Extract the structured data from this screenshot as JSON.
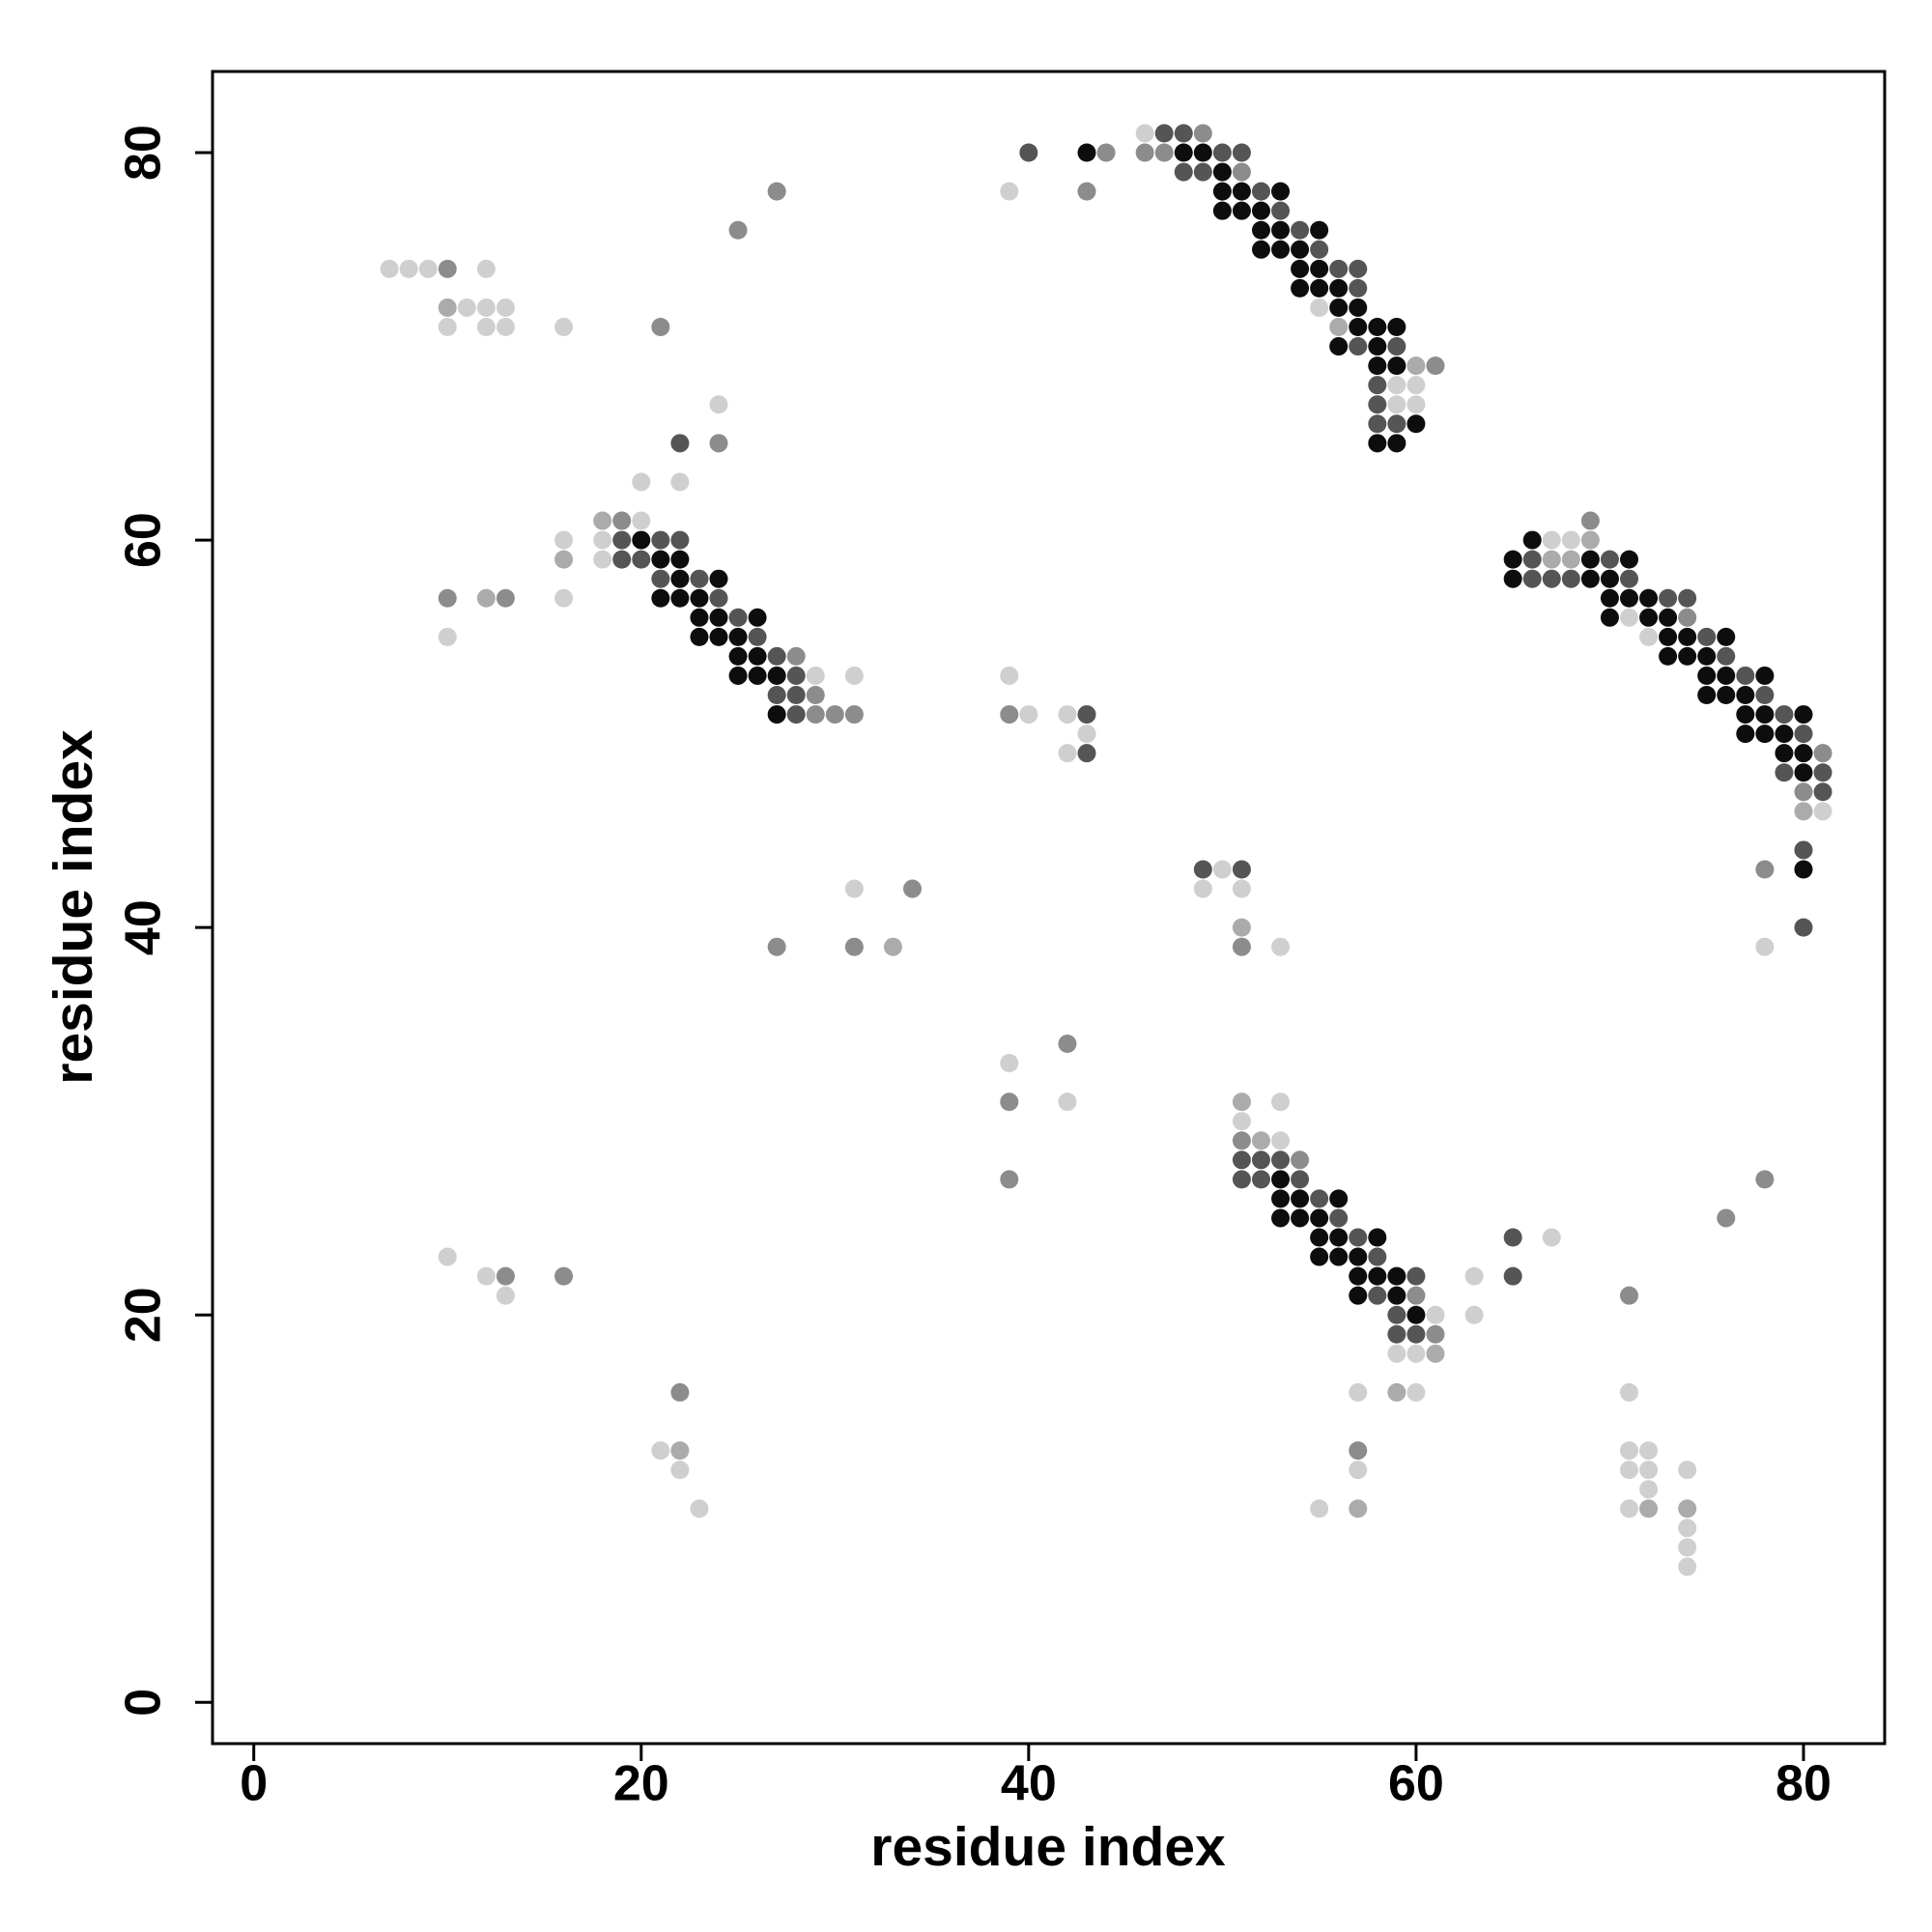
{
  "chart_data": {
    "type": "scatter",
    "xlabel": "residue index",
    "ylabel": "residue index",
    "xlim": [
      -2.13,
      84.19
    ],
    "ylim": [
      -2.13,
      84.19
    ],
    "xticks": [
      0,
      20,
      40,
      60,
      80
    ],
    "yticks": [
      0,
      20,
      40,
      60,
      80
    ],
    "series": [
      {
        "color": "#0d0d0d",
        "x": [
          43,
          48,
          49,
          50,
          50,
          51,
          53,
          50,
          51,
          52,
          52,
          53,
          55,
          52,
          53,
          54,
          54,
          55,
          54,
          55,
          56,
          56,
          57,
          57,
          58,
          59,
          56,
          58,
          58,
          59,
          60,
          58,
          59,
          20,
          21,
          22,
          22,
          24,
          21,
          22,
          23,
          23,
          24,
          26,
          23,
          24,
          25,
          25,
          26,
          25,
          26,
          27,
          27,
          66,
          65,
          69,
          71,
          65,
          69,
          70,
          70,
          71,
          72,
          70,
          72,
          73,
          73,
          74,
          76,
          73,
          74,
          75,
          75,
          76,
          78,
          75,
          76,
          77,
          77,
          78,
          80,
          77,
          78,
          79,
          79,
          80,
          80,
          80,
          53,
          53,
          54,
          56,
          53,
          54,
          55,
          55,
          56,
          58,
          55,
          56,
          57,
          57,
          58,
          59,
          57,
          59,
          60
        ],
        "y": [
          80,
          80,
          80,
          79,
          78,
          78,
          78,
          77,
          77,
          77,
          76,
          76,
          76,
          75,
          75,
          75,
          74,
          74,
          73,
          73,
          73,
          72,
          72,
          71,
          71,
          71,
          70,
          70,
          69,
          69,
          66,
          65,
          65,
          60,
          59,
          59,
          58,
          58,
          57,
          57,
          57,
          56,
          56,
          56,
          55,
          55,
          55,
          54,
          54,
          53,
          53,
          53,
          51,
          60,
          59,
          59,
          59,
          58,
          58,
          58,
          57,
          57,
          57,
          56,
          56,
          56,
          55,
          55,
          55,
          54,
          54,
          54,
          53,
          53,
          53,
          52,
          52,
          52,
          51,
          51,
          51,
          50,
          50,
          50,
          49,
          49,
          48,
          43,
          27,
          26,
          26,
          26,
          25,
          25,
          25,
          24,
          24,
          24,
          23,
          23,
          23,
          22,
          22,
          22,
          21,
          21,
          20
        ]
      },
      {
        "color": "#555555",
        "x": [
          47,
          48,
          40,
          50,
          51,
          48,
          49,
          52,
          53,
          54,
          55,
          56,
          57,
          57,
          57,
          59,
          58,
          58,
          58,
          59,
          22,
          19,
          21,
          22,
          19,
          20,
          21,
          23,
          24,
          25,
          26,
          27,
          28,
          27,
          28,
          28,
          43,
          43,
          66,
          70,
          66,
          67,
          68,
          71,
          73,
          74,
          75,
          76,
          77,
          78,
          79,
          80,
          79,
          81,
          81,
          80,
          49,
          51,
          80,
          51,
          52,
          53,
          51,
          52,
          54,
          55,
          56,
          57,
          58,
          60,
          65,
          58,
          59,
          59,
          60,
          65
        ],
        "y": [
          81,
          81,
          80,
          80,
          80,
          79,
          79,
          78,
          77,
          76,
          75,
          74,
          74,
          73,
          70,
          70,
          68,
          67,
          66,
          66,
          65,
          60,
          60,
          60,
          59,
          59,
          58,
          58,
          57,
          56,
          55,
          54,
          53,
          52,
          52,
          51,
          51,
          49,
          59,
          59,
          58,
          58,
          58,
          58,
          57,
          57,
          55,
          54,
          53,
          52,
          51,
          50,
          48,
          48,
          47,
          44,
          43,
          43,
          40,
          28,
          28,
          28,
          27,
          27,
          27,
          26,
          25,
          24,
          23,
          22,
          22,
          21,
          20,
          19,
          19,
          24
        ]
      },
      {
        "color": "#8c8c8c",
        "x": [
          49,
          44,
          46,
          47,
          51,
          27,
          43,
          25,
          10,
          21,
          61,
          24,
          19,
          69,
          28,
          29,
          29,
          30,
          31,
          39,
          81,
          80,
          78,
          34,
          27,
          31,
          51,
          42,
          39,
          51,
          54,
          39,
          78,
          76,
          13,
          16,
          60,
          71,
          61,
          22,
          57,
          10,
          13,
          74
        ],
        "y": [
          81,
          80,
          80,
          80,
          79,
          78,
          78,
          76,
          74,
          71,
          69,
          65,
          61,
          61,
          54,
          52,
          51,
          51,
          51,
          51,
          49,
          47,
          43,
          42,
          39,
          39,
          39,
          34,
          31,
          29,
          28,
          27,
          27,
          25,
          22,
          22,
          21,
          21,
          19,
          16,
          13,
          57,
          57,
          56
        ]
      },
      {
        "color": "#ababab",
        "x": [
          10,
          56,
          60,
          18,
          69,
          16,
          67,
          68,
          12,
          80,
          51,
          33,
          52,
          51,
          61,
          59,
          22,
          57,
          72,
          74
        ],
        "y": [
          72,
          71,
          69,
          61,
          60,
          59,
          59,
          59,
          57,
          46,
          40,
          39,
          29,
          31,
          18,
          16,
          13,
          10,
          10,
          10
        ]
      },
      {
        "color": "#cfcfcf",
        "x": [
          46,
          39,
          7,
          8,
          9,
          12,
          11,
          12,
          13,
          55,
          10,
          12,
          13,
          16,
          59,
          60,
          24,
          59,
          60,
          20,
          22,
          20,
          16,
          18,
          67,
          68,
          18,
          16,
          71,
          10,
          72,
          39,
          29,
          31,
          40,
          42,
          43,
          42,
          81,
          50,
          31,
          49,
          51,
          53,
          78,
          39,
          42,
          53,
          51,
          53,
          10,
          67,
          12,
          63,
          13,
          61,
          63,
          59,
          60,
          57,
          60,
          71,
          21,
          71,
          72,
          22,
          57,
          71,
          72,
          74,
          72,
          23,
          55,
          71,
          74,
          74,
          74
        ],
        "y": [
          81,
          78,
          74,
          74,
          74,
          74,
          72,
          72,
          72,
          72,
          71,
          71,
          71,
          71,
          68,
          68,
          67,
          67,
          67,
          63,
          63,
          61,
          60,
          60,
          60,
          60,
          59,
          57,
          56,
          55,
          55,
          53,
          53,
          53,
          51,
          51,
          50,
          49,
          46,
          43,
          42,
          42,
          42,
          39,
          39,
          33,
          31,
          31,
          30,
          29,
          23,
          24,
          22,
          22,
          21,
          20,
          20,
          18,
          18,
          16,
          16,
          16,
          13,
          13,
          13,
          12,
          12,
          12,
          12,
          12,
          11,
          10,
          10,
          10,
          9,
          8,
          7
        ]
      }
    ]
  }
}
